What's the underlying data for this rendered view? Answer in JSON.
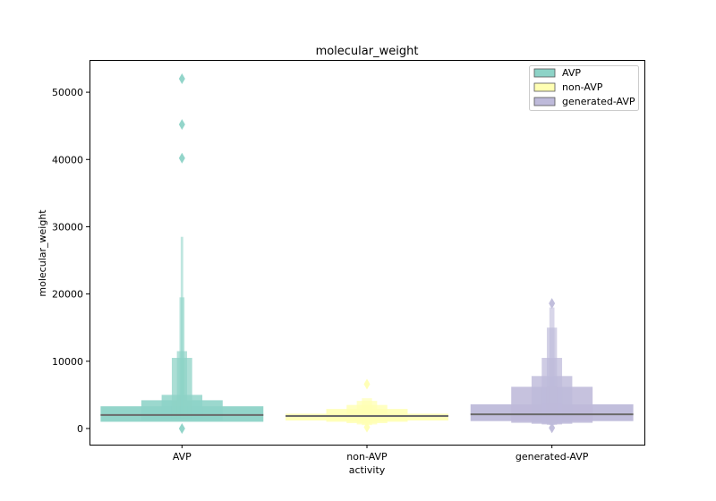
{
  "chart_data": {
    "type": "boxen",
    "title": "molecular_weight",
    "xlabel": "activity",
    "ylabel": "molecular_weight",
    "categories": [
      "AVP",
      "non-AVP",
      "generated-AVP"
    ],
    "ylim": [
      -2400,
      54800
    ],
    "yticks": [
      0,
      10000,
      20000,
      30000,
      40000,
      50000
    ],
    "ytick_labels": [
      "0",
      "10000",
      "20000",
      "30000",
      "40000",
      "50000"
    ],
    "legend": {
      "placement": "top-right",
      "entries": [
        "AVP",
        "non-AVP",
        "generated-AVP"
      ]
    },
    "colors": [
      "#8dd3c7",
      "#ffffb3",
      "#bebada"
    ],
    "series": [
      {
        "name": "AVP",
        "median": 2000,
        "boxes": [
          [
            1000,
            3300
          ],
          [
            1250,
            4200
          ],
          [
            1400,
            5000
          ],
          [
            1500,
            10500
          ],
          [
            1550,
            11500
          ],
          [
            1580,
            19500
          ],
          [
            1600,
            28500
          ]
        ],
        "outliers": [
          0,
          40200,
          45200,
          52000
        ]
      },
      {
        "name": "non-AVP",
        "median": 1850,
        "boxes": [
          [
            1200,
            2200
          ],
          [
            1000,
            2900
          ],
          [
            800,
            3500
          ],
          [
            600,
            4100
          ],
          [
            500,
            4500
          ]
        ],
        "outliers": [
          200,
          6600
        ]
      },
      {
        "name": "generated-AVP",
        "median": 2100,
        "boxes": [
          [
            1100,
            3600
          ],
          [
            850,
            6200
          ],
          [
            700,
            7800
          ],
          [
            600,
            10500
          ],
          [
            550,
            15000
          ],
          [
            520,
            18000
          ]
        ],
        "outliers": [
          100,
          18600
        ]
      }
    ]
  }
}
